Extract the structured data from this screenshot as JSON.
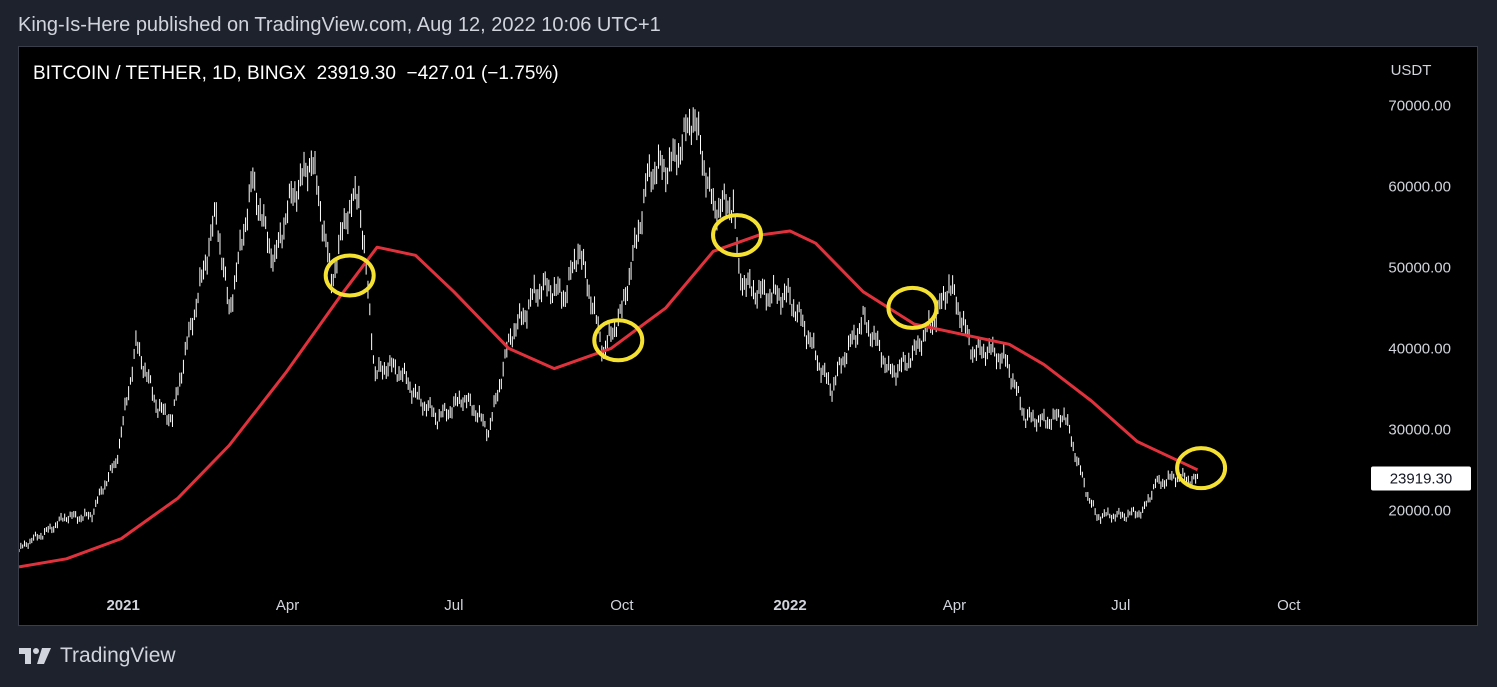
{
  "header": {
    "published": "King-Is-Here published on TradingView.com, Aug 12, 2022 10:06 UTC+1"
  },
  "symbol": {
    "pair": "BITCOIN / TETHER",
    "interval": "1D",
    "exchange": "BINGX",
    "last": "23919.30",
    "change": "−427.01",
    "change_pct": "(−1.75%)"
  },
  "footer": {
    "brand": "TradingView",
    "logo_icon": "tradingview-logo-icon"
  },
  "colors": {
    "background": "#000000",
    "frame": "#1e222d",
    "price": "#ffffff",
    "ma": "#e0323c",
    "highlight": "#f5e132"
  },
  "chart_data": {
    "type": "line",
    "title": "BITCOIN / TETHER, 1D, BINGX",
    "ylabel": "USDT",
    "ylim": [
      12000,
      76000
    ],
    "y_ticks": [
      "70000.00",
      "60000.00",
      "50000.00",
      "40000.00",
      "30000.00",
      "20000.00"
    ],
    "y_tick_values": [
      70000,
      60000,
      50000,
      40000,
      30000,
      20000
    ],
    "x_ticks": [
      {
        "label": "2021",
        "date": "2021-01-01",
        "bold": true
      },
      {
        "label": "Apr",
        "date": "2021-04-01",
        "bold": false
      },
      {
        "label": "Jul",
        "date": "2021-07-01",
        "bold": false
      },
      {
        "label": "Oct",
        "date": "2021-10-01",
        "bold": false
      },
      {
        "label": "2022",
        "date": "2022-01-01",
        "bold": true
      },
      {
        "label": "Apr",
        "date": "2022-04-01",
        "bold": false
      },
      {
        "label": "Jul",
        "date": "2022-07-01",
        "bold": false
      },
      {
        "label": "Oct",
        "date": "2022-10-01",
        "bold": false
      }
    ],
    "xlim": [
      "2020-11-05",
      "2023-01-12"
    ],
    "last_price_label": "23919.30",
    "last_price_value": 23919.3,
    "series": [
      {
        "kind": "price",
        "points": [
          [
            "2020-11-05",
            15000
          ],
          [
            "2020-11-20",
            17500
          ],
          [
            "2020-12-01",
            19000
          ],
          [
            "2020-12-15",
            19500
          ],
          [
            "2020-12-28",
            26000
          ],
          [
            "2021-01-08",
            40000
          ],
          [
            "2021-01-20",
            33000
          ],
          [
            "2021-01-28",
            31000
          ],
          [
            "2021-02-08",
            44000
          ],
          [
            "2021-02-21",
            56000
          ],
          [
            "2021-02-28",
            45000
          ],
          [
            "2021-03-13",
            60000
          ],
          [
            "2021-03-25",
            51000
          ],
          [
            "2021-04-03",
            58000
          ],
          [
            "2021-04-14",
            64000
          ],
          [
            "2021-04-25",
            48000
          ],
          [
            "2021-05-03",
            57000
          ],
          [
            "2021-05-10",
            58500
          ],
          [
            "2021-05-19",
            37000
          ],
          [
            "2021-05-25",
            38000
          ],
          [
            "2021-06-05",
            36000
          ],
          [
            "2021-06-22",
            31000
          ],
          [
            "2021-07-05",
            34000
          ],
          [
            "2021-07-20",
            30000
          ],
          [
            "2021-08-01",
            41000
          ],
          [
            "2021-08-14",
            47000
          ],
          [
            "2021-08-31",
            47000
          ],
          [
            "2021-09-07",
            52000
          ],
          [
            "2021-09-21",
            40000
          ],
          [
            "2021-10-01",
            44000
          ],
          [
            "2021-10-15",
            61000
          ],
          [
            "2021-10-25",
            62000
          ],
          [
            "2021-11-09",
            68000
          ],
          [
            "2021-11-20",
            58000
          ],
          [
            "2021-12-01",
            57000
          ],
          [
            "2021-12-04",
            49000
          ],
          [
            "2021-12-20",
            46000
          ],
          [
            "2021-12-31",
            47000
          ],
          [
            "2022-01-10",
            41500
          ],
          [
            "2022-01-24",
            35000
          ],
          [
            "2022-02-10",
            44000
          ],
          [
            "2022-02-24",
            37000
          ],
          [
            "2022-03-10",
            39000
          ],
          [
            "2022-03-29",
            47500
          ],
          [
            "2022-04-11",
            40000
          ],
          [
            "2022-04-30",
            38500
          ],
          [
            "2022-05-10",
            31000
          ],
          [
            "2022-05-31",
            31500
          ],
          [
            "2022-06-13",
            22000
          ],
          [
            "2022-06-18",
            19000
          ],
          [
            "2022-06-30",
            19500
          ],
          [
            "2022-07-13",
            19500
          ],
          [
            "2022-07-20",
            23500
          ],
          [
            "2022-07-30",
            23800
          ],
          [
            "2022-08-12",
            23919.3
          ]
        ]
      },
      {
        "kind": "moving-average",
        "points": [
          [
            "2020-11-05",
            13000
          ],
          [
            "2020-12-01",
            14000
          ],
          [
            "2020-12-31",
            16500
          ],
          [
            "2021-01-31",
            21500
          ],
          [
            "2021-02-28",
            28000
          ],
          [
            "2021-03-31",
            37000
          ],
          [
            "2021-04-30",
            46500
          ],
          [
            "2021-05-20",
            52500
          ],
          [
            "2021-06-10",
            51500
          ],
          [
            "2021-07-01",
            47000
          ],
          [
            "2021-07-31",
            40000
          ],
          [
            "2021-08-25",
            37500
          ],
          [
            "2021-09-25",
            40000
          ],
          [
            "2021-10-25",
            45000
          ],
          [
            "2021-11-20",
            52000
          ],
          [
            "2021-12-15",
            54000
          ],
          [
            "2022-01-01",
            54500
          ],
          [
            "2022-01-15",
            53000
          ],
          [
            "2022-02-10",
            47000
          ],
          [
            "2022-03-10",
            43000
          ],
          [
            "2022-04-10",
            41500
          ],
          [
            "2022-05-01",
            40500
          ],
          [
            "2022-05-20",
            38000
          ],
          [
            "2022-06-15",
            33500
          ],
          [
            "2022-07-10",
            28500
          ],
          [
            "2022-08-12",
            25000
          ]
        ]
      }
    ],
    "annotations": [
      {
        "type": "circle",
        "date": "2021-05-05",
        "value": 49000
      },
      {
        "type": "circle",
        "date": "2021-09-29",
        "value": 41000
      },
      {
        "type": "circle",
        "date": "2021-12-03",
        "value": 54000
      },
      {
        "type": "circle",
        "date": "2022-03-09",
        "value": 45000
      },
      {
        "type": "circle",
        "date": "2022-08-14",
        "value": 25200
      }
    ]
  }
}
